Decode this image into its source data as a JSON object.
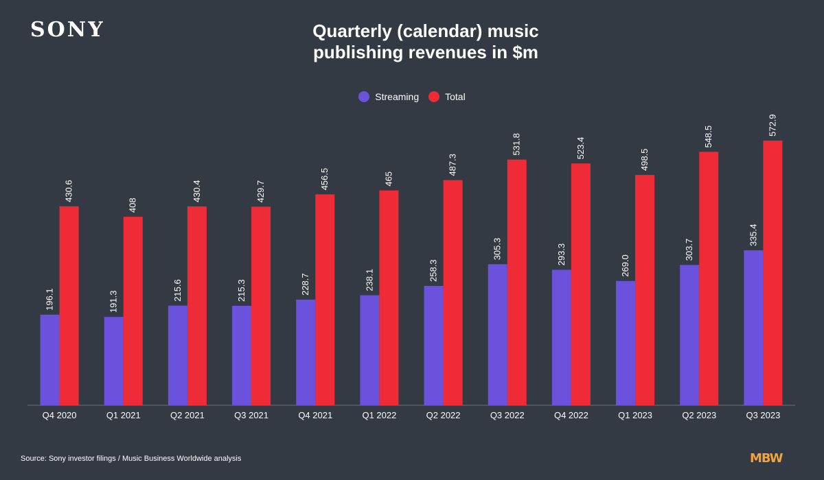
{
  "brand": {
    "logo_text": "SONY",
    "footer_logo_text": "MBW"
  },
  "source": "Source: Sony investor filings / Music Business Worldwide analysis",
  "chart_data": {
    "type": "bar",
    "title_lines": [
      "Quarterly (calendar) music",
      "publishing revenues in $m"
    ],
    "categories": [
      "Q4 2020",
      "Q1 2021",
      "Q2 2021",
      "Q3 2021",
      "Q4 2021",
      "Q1 2022",
      "Q2 2022",
      "Q3 2022",
      "Q4 2022",
      "Q1 2023",
      "Q2 2023",
      "Q3 2023"
    ],
    "series": [
      {
        "name": "Streaming",
        "color": "#6b52dc",
        "values": [
          196.1,
          191.3,
          215.6,
          215.3,
          228.7,
          238.1,
          258.3,
          305.3,
          293.3,
          269.0,
          303.7,
          335.4
        ],
        "labels": [
          "196.1",
          "191.3",
          "215.6",
          "215.3",
          "228.7",
          "238.1",
          "258.3",
          "305.3",
          "293.3",
          "269.0",
          "303.7",
          "335.4"
        ]
      },
      {
        "name": "Total",
        "color": "#ef2b38",
        "values": [
          430.6,
          408,
          430.4,
          429.7,
          456.5,
          465,
          487.3,
          531.8,
          523.4,
          498.5,
          548.5,
          572.9
        ],
        "labels": [
          "430.6",
          "408",
          "430.4",
          "429.7",
          "456.5",
          "465",
          "487.3",
          "531.8",
          "523.4",
          "498.5",
          "548.5",
          "572.9"
        ]
      }
    ],
    "ylim": [
      0,
      572.9
    ],
    "grid": false,
    "legend_position": "top-center",
    "axis_color": "#6a7079"
  }
}
